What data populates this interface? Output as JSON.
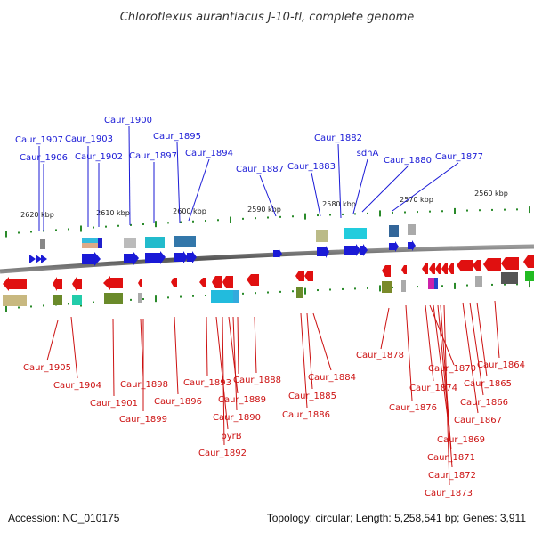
{
  "title": "Chloroflexus aurantiacus J-10-fl, complete genome",
  "footer": {
    "accession": "Accession: NC_010175",
    "topology": "Topology: circular; Length: 5,258,541 bp; Genes: 3,911"
  },
  "scale_ticks": [
    "2620 kbp",
    "2610 kbp",
    "2600 kbp",
    "2590 kbp",
    "2580 kbp",
    "2570 kbp",
    "2560 kbp"
  ],
  "top_genes": [
    "Caur_1907",
    "Caur_1906",
    "Caur_1903",
    "Caur_1902",
    "Caur_1900",
    "Caur_1897",
    "Caur_1895",
    "Caur_1894",
    "Caur_1887",
    "Caur_1883",
    "Caur_1882",
    "sdhA",
    "Caur_1880",
    "Caur_1877"
  ],
  "bottom_genes": [
    "Caur_1905",
    "Caur_1904",
    "Caur_1901",
    "Caur_1898",
    "Caur_1899",
    "Caur_1896",
    "Caur_1893",
    "Caur_1889",
    "Caur_1890",
    "pyrB",
    "Caur_1892",
    "Caur_1888",
    "Caur_1885",
    "Caur_1886",
    "Caur_1884",
    "Caur_1878",
    "Caur_1876",
    "Caur_1874",
    "Caur_1870",
    "Caur_1869",
    "Caur_1871",
    "Caur_1872",
    "Caur_1873",
    "Caur_1867",
    "Caur_1866",
    "Caur_1865",
    "Caur_1864"
  ],
  "colors": {
    "forward_strand": "#1a1ad6",
    "reverse_strand": "#e01010",
    "backbone": "#666666",
    "tick_green": "#2a8a2a"
  }
}
